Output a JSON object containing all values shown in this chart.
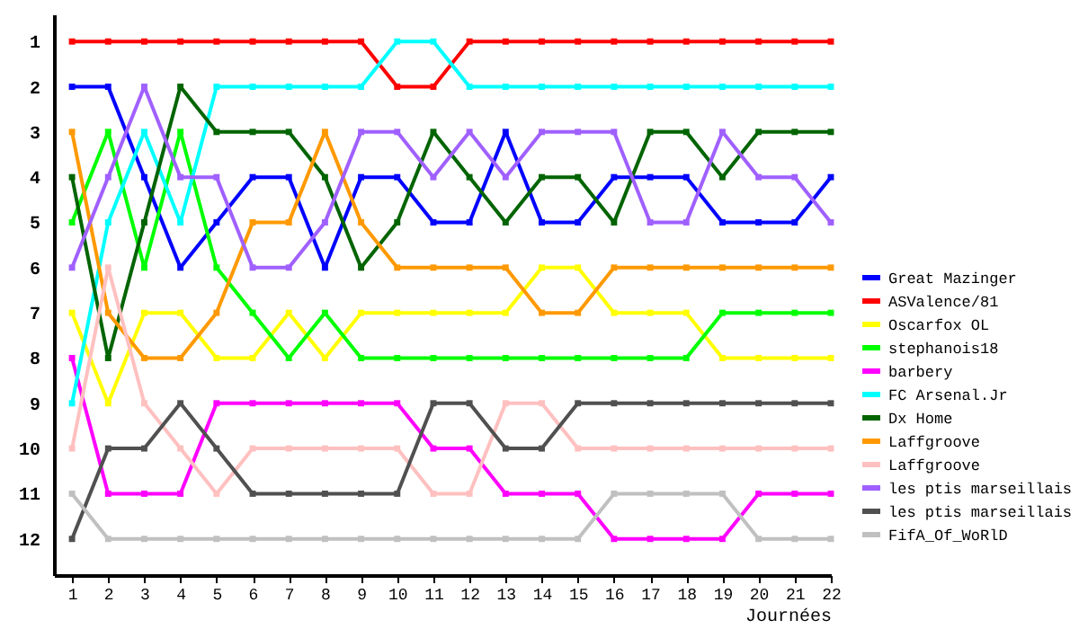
{
  "chart_data": {
    "type": "line",
    "xlabel": "Journées",
    "x": [
      1,
      2,
      3,
      4,
      5,
      6,
      7,
      8,
      9,
      10,
      11,
      12,
      13,
      14,
      15,
      16,
      17,
      18,
      19,
      20,
      21,
      22
    ],
    "series": [
      {
        "name": "Great Mazinger",
        "color": "#0000ff",
        "values": [
          2,
          2,
          4,
          6,
          5,
          4,
          4,
          6,
          4,
          4,
          5,
          5,
          3,
          5,
          5,
          4,
          4,
          4,
          5,
          5,
          5,
          4
        ]
      },
      {
        "name": "ASValence/81",
        "color": "#ff0000",
        "values": [
          1,
          1,
          1,
          1,
          1,
          1,
          1,
          1,
          1,
          2,
          2,
          1,
          1,
          1,
          1,
          1,
          1,
          1,
          1,
          1,
          1,
          1
        ]
      },
      {
        "name": "Oscarfox OL",
        "color": "#ffff00",
        "values": [
          7,
          9,
          7,
          7,
          8,
          8,
          7,
          8,
          7,
          7,
          7,
          7,
          7,
          6,
          6,
          7,
          7,
          7,
          8,
          8,
          8,
          8
        ]
      },
      {
        "name": "stephanois18",
        "color": "#00ff00",
        "values": [
          5,
          3,
          6,
          3,
          6,
          7,
          8,
          7,
          8,
          8,
          8,
          8,
          8,
          8,
          8,
          8,
          8,
          8,
          7,
          7,
          7,
          7
        ]
      },
      {
        "name": "barbery",
        "color": "#ff00ff",
        "values": [
          8,
          11,
          11,
          11,
          9,
          9,
          9,
          9,
          9,
          9,
          10,
          10,
          11,
          11,
          11,
          12,
          12,
          12,
          12,
          11,
          11,
          11
        ]
      },
      {
        "name": "FC Arsenal.Jr",
        "color": "#00ffff",
        "values": [
          9,
          5,
          3,
          5,
          2,
          2,
          2,
          2,
          2,
          1,
          1,
          2,
          2,
          2,
          2,
          2,
          2,
          2,
          2,
          2,
          2,
          2
        ]
      },
      {
        "name": "Dx Home",
        "color": "#006400",
        "values": [
          4,
          8,
          5,
          2,
          3,
          3,
          3,
          4,
          6,
          5,
          3,
          4,
          5,
          4,
          4,
          5,
          3,
          3,
          4,
          3,
          3,
          3
        ]
      },
      {
        "name": "Laffgroove",
        "color": "#ff9900",
        "values": [
          3,
          7,
          8,
          8,
          7,
          5,
          5,
          3,
          5,
          6,
          6,
          6,
          6,
          7,
          7,
          6,
          6,
          6,
          6,
          6,
          6,
          6
        ]
      },
      {
        "name": "Laffgroove",
        "color": "#ffc0c0",
        "values": [
          10,
          6,
          9,
          10,
          11,
          10,
          10,
          10,
          10,
          10,
          11,
          11,
          9,
          9,
          10,
          10,
          10,
          10,
          10,
          10,
          10,
          10
        ]
      },
      {
        "name": "les ptis marseillais",
        "color": "#a060ff",
        "values": [
          6,
          4,
          2,
          4,
          4,
          6,
          6,
          5,
          3,
          3,
          4,
          3,
          4,
          3,
          3,
          3,
          5,
          5,
          3,
          4,
          4,
          5
        ]
      },
      {
        "name": "les ptis marseillais",
        "color": "#505050",
        "values": [
          12,
          10,
          10,
          9,
          10,
          11,
          11,
          11,
          11,
          11,
          9,
          9,
          10,
          10,
          9,
          9,
          9,
          9,
          9,
          9,
          9,
          9
        ]
      },
      {
        "name": "FifA_Of_WoRlD",
        "color": "#c0c0c0",
        "values": [
          11,
          12,
          12,
          12,
          12,
          12,
          12,
          12,
          12,
          12,
          12,
          12,
          12,
          12,
          12,
          11,
          11,
          11,
          11,
          12,
          12,
          12
        ]
      }
    ],
    "xlim": [
      0.5,
      22
    ],
    "xticks": [
      1,
      2,
      3,
      4,
      5,
      6,
      7,
      8,
      9,
      10,
      11,
      12,
      13,
      14,
      15,
      16,
      17,
      18,
      19,
      20,
      21,
      22
    ],
    "ylim": [
      12.8,
      0.4
    ],
    "yticks": [
      1,
      2,
      3,
      4,
      5,
      6,
      7,
      8,
      9,
      10,
      11,
      12
    ],
    "grid": false,
    "legend": "right",
    "marker": "square",
    "line_style": "solid"
  }
}
